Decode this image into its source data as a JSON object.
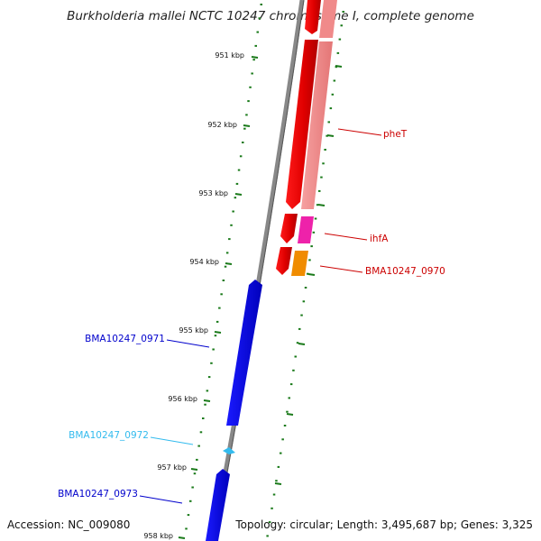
{
  "title": "Burkholderia mallei NCTC 10247 chromosome I, complete genome",
  "footer": {
    "accession": "Accession: NC_009080",
    "summary": "Topology: circular; Length: 3,495,687 bp; Genes: 3,325"
  },
  "ticks": [
    "951 kbp",
    "952 kbp",
    "953 kbp",
    "954 kbp",
    "955 kbp",
    "956 kbp",
    "957 kbp",
    "958 kbp"
  ],
  "genes": [
    {
      "label": "pheT",
      "color": "#cc0000"
    },
    {
      "label": "ihfA",
      "color": "#cc0000"
    },
    {
      "label": "BMA10247_0970",
      "color": "#cc0000"
    },
    {
      "label": "BMA10247_0971",
      "color": "#0000cc"
    },
    {
      "label": "BMA10247_0972",
      "color": "#33bbee"
    },
    {
      "label": "BMA10247_0973",
      "color": "#0000cc"
    }
  ],
  "colors": {
    "backbone": "#888888",
    "tick": "#1a7a1a",
    "cds_forward": "#ee0000",
    "cds_reverse": "#0000ee",
    "pheT_track": "#f08a8a",
    "ihfA_track": "#ee22aa",
    "BMA10247_0970_track": "#f08c00"
  }
}
